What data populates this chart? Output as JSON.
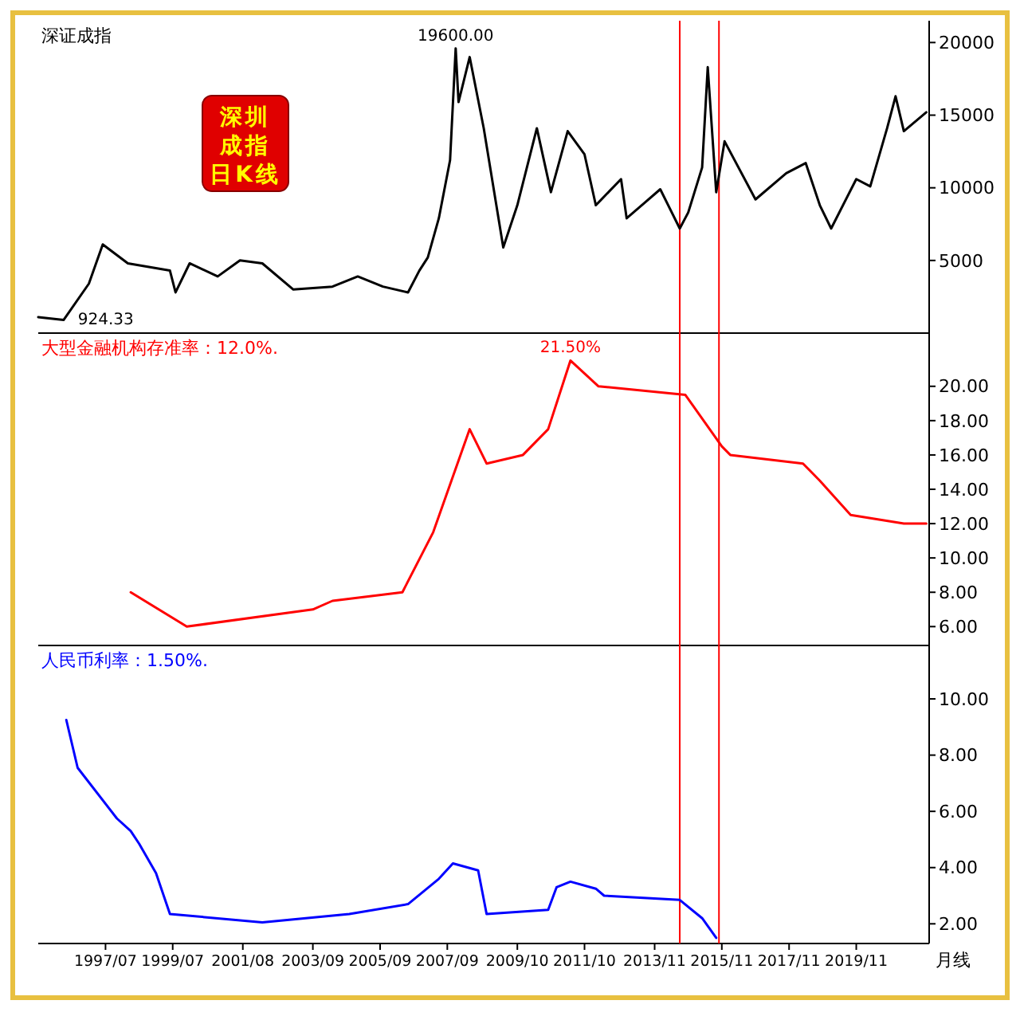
{
  "chart_data": [
    {
      "type": "line",
      "title": "深证成指",
      "xlim": [
        "1995-07",
        "2022-01"
      ],
      "ylim": [
        0,
        21500
      ],
      "yticks": [
        5000,
        10000,
        15000,
        20000
      ],
      "tick_labels": "y",
      "grid": false,
      "x": [
        "1995-07",
        "1996-04",
        "1997-01",
        "1997-06",
        "1998-03",
        "1999-06",
        "1999-08",
        "2000-01",
        "2000-11",
        "2001-07",
        "2002-03",
        "2003-02",
        "2004-04",
        "2005-01",
        "2005-10",
        "2006-07",
        "2006-11",
        "2007-02",
        "2007-06",
        "2007-10",
        "2007-12",
        "2008-01",
        "2008-05",
        "2008-10",
        "2009-05",
        "2009-10",
        "2010-05",
        "2010-10",
        "2011-04",
        "2011-10",
        "2012-02",
        "2012-11",
        "2013-01",
        "2014-01",
        "2014-08",
        "2014-11",
        "2015-04",
        "2015-06",
        "2015-09",
        "2015-12",
        "2016-11",
        "2017-10",
        "2018-05",
        "2018-10",
        "2019-02",
        "2019-11",
        "2020-04",
        "2020-10",
        "2021-01",
        "2021-04",
        "2021-12"
      ],
      "series": [
        {
          "color": "#000000",
          "values": [
            1100,
            900,
            3400,
            6100,
            4800,
            4300,
            2800,
            4800,
            3900,
            5000,
            4800,
            3000,
            3200,
            3900,
            3200,
            2800,
            4300,
            5200,
            7900,
            11900,
            19600,
            15900,
            19000,
            14100,
            5900,
            8800,
            14100,
            9700,
            13900,
            12300,
            8800,
            10600,
            7900,
            9900,
            7200,
            8300,
            11400,
            18300,
            9700,
            13200,
            9200,
            11000,
            11700,
            8800,
            7200,
            10600,
            10100,
            14100,
            16300,
            13900,
            15200
          ]
        }
      ],
      "annotations": [
        {
          "text": "19600.00",
          "x": "2007-12",
          "y": 19600
        },
        {
          "text": "924.33",
          "x": "1996-04",
          "y": 924
        },
        "深圳",
        "成指",
        "日K线"
      ],
      "ref_lines": [
        {
          "axis": "x",
          "value": "2014-08",
          "color": "#ff0000"
        },
        {
          "axis": "x",
          "value": "2015-10",
          "color": "#ff0000"
        }
      ]
    },
    {
      "type": "line",
      "title": "大型金融机构存准率：12.0%.",
      "xlim": [
        "1995-07",
        "2022-01"
      ],
      "ylim": [
        4.9,
        23.1
      ],
      "yticks": [
        {
          "value": 6,
          "label": "6.00"
        },
        {
          "value": 8,
          "label": "8.00"
        },
        {
          "value": 10,
          "label": "10.00"
        },
        {
          "value": 12,
          "label": "12.00"
        },
        {
          "value": 14,
          "label": "14.00"
        },
        {
          "value": 16,
          "label": "16.00"
        },
        {
          "value": 18,
          "label": "18.00"
        },
        {
          "value": 20,
          "label": "20.00"
        }
      ],
      "tick_labels": "y",
      "grid": false,
      "x": [
        "1998-04",
        "1999-12",
        "2003-09",
        "2004-04",
        "2006-05",
        "2007-04",
        "2008-05",
        "2008-11",
        "2009-12",
        "2010-09",
        "2011-05",
        "2012-03",
        "2014-10",
        "2015-11",
        "2016-02",
        "2018-04",
        "2018-10",
        "2019-09",
        "2021-04",
        "2021-12"
      ],
      "series": [
        {
          "color": "#ff0000",
          "values": [
            8.0,
            6.0,
            7.0,
            7.5,
            8.0,
            11.5,
            17.5,
            15.5,
            16.0,
            17.5,
            21.5,
            20.0,
            19.5,
            16.5,
            16.0,
            15.5,
            14.5,
            12.5,
            12.0,
            12.0
          ]
        }
      ],
      "annotations": [
        {
          "text": "21.50%",
          "x": "2011-05",
          "y": 21.5
        }
      ],
      "ref_lines": [
        {
          "axis": "x",
          "value": "2014-08",
          "color": "#ff0000"
        },
        {
          "axis": "x",
          "value": "2015-10",
          "color": "#ff0000"
        }
      ]
    },
    {
      "type": "line",
      "title": "人民币利率：1.50%.",
      "xlim": [
        "1995-07",
        "2022-01"
      ],
      "ylim": [
        1.3,
        11.9
      ],
      "yticks": [
        {
          "value": 2,
          "label": "2.00"
        },
        {
          "value": 4,
          "label": "4.00"
        },
        {
          "value": 6,
          "label": "6.00"
        },
        {
          "value": 8,
          "label": "8.00"
        },
        {
          "value": 10,
          "label": "10.00"
        }
      ],
      "grid": false,
      "xticks": [
        {
          "value": "1997-07",
          "label": "1997/07"
        },
        {
          "value": "1999-07",
          "label": "1999/07"
        },
        {
          "value": "2001-08",
          "label": "2001/08"
        },
        {
          "value": "2003-09",
          "label": "2003/09"
        },
        {
          "value": "2005-09",
          "label": "2005/09"
        },
        {
          "value": "2007-09",
          "label": "2007/09"
        },
        {
          "value": "2009-10",
          "label": "2009/10"
        },
        {
          "value": "2011-10",
          "label": "2011/10"
        },
        {
          "value": "2013-11",
          "label": "2013/11"
        },
        {
          "value": "2015-11",
          "label": "2015/11"
        },
        {
          "value": "2017-11",
          "label": "2017/11"
        },
        {
          "value": "2019-11",
          "label": "2019/11"
        }
      ],
      "x": [
        "1996-05",
        "1996-09",
        "1997-11",
        "1998-04",
        "1998-07",
        "1999-01",
        "1999-06",
        "2002-03",
        "2004-10",
        "2006-07",
        "2007-06",
        "2007-11",
        "2008-08",
        "2008-11",
        "2010-09",
        "2010-12",
        "2011-05",
        "2012-02",
        "2012-05",
        "2014-08",
        "2015-04",
        "2015-09"
      ],
      "series": [
        {
          "color": "#0000ff",
          "values": [
            9.25,
            7.55,
            5.75,
            5.3,
            4.85,
            3.8,
            2.35,
            2.05,
            2.35,
            2.7,
            3.6,
            4.15,
            3.9,
            2.35,
            2.5,
            3.3,
            3.5,
            3.25,
            3.0,
            2.85,
            2.2,
            1.5
          ]
        }
      ],
      "annotations": [
        "月线"
      ],
      "ref_lines": [
        {
          "axis": "x",
          "value": "2014-08",
          "color": "#ff0000"
        },
        {
          "axis": "x",
          "value": "2015-10",
          "color": "#ff0000"
        }
      ]
    }
  ]
}
